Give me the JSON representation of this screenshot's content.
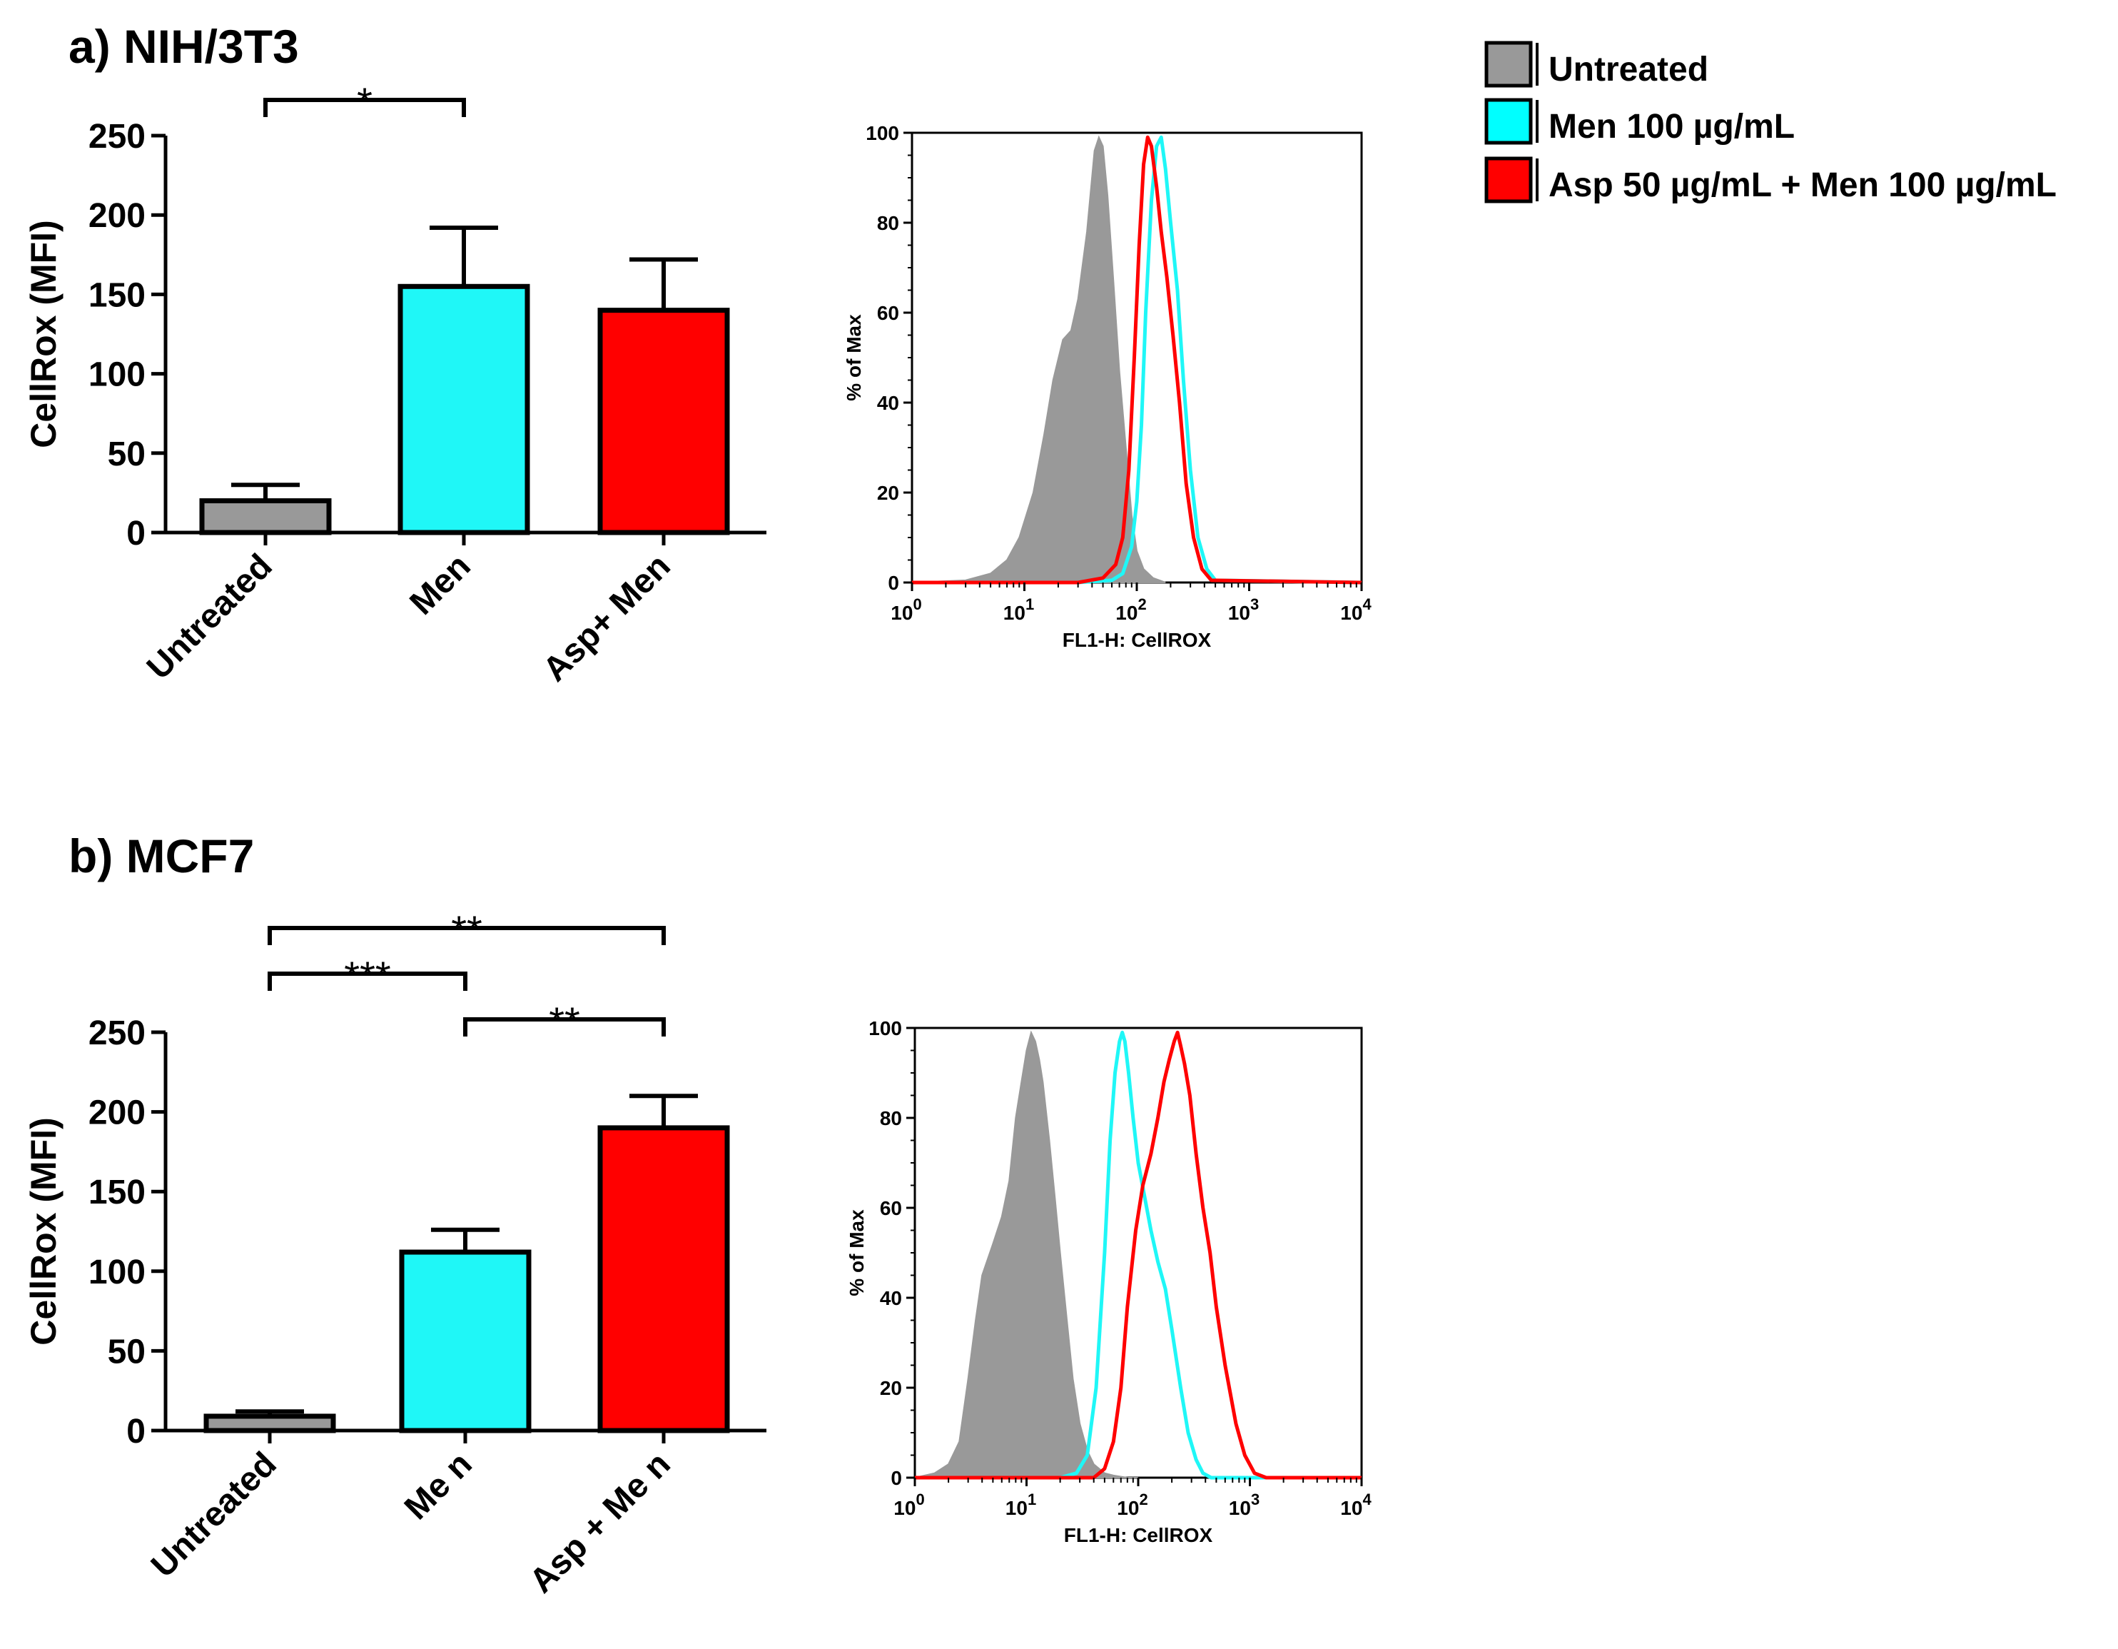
{
  "legend": {
    "entries": [
      {
        "label": "Untreated",
        "color": "#999999"
      },
      {
        "label": "Men 100 µg/mL",
        "color": "#00ffff"
      },
      {
        "label": "Asp 50 µg/mL + Men 100 µg/mL",
        "color": "#ff0000"
      }
    ]
  },
  "colors": {
    "untreated": "#999999",
    "men": "#1ff7f7",
    "asp_men": "#ff0000",
    "axis": "#000000"
  },
  "chart_data": [
    {
      "type": "bar",
      "panel_label": "a) NIH/3T3",
      "categories": [
        "Untreated",
        "Men",
        "Asp+ Men"
      ],
      "values": [
        20,
        155,
        140
      ],
      "errors": [
        10,
        37,
        32
      ],
      "ylabel": "CellRox (MFI)",
      "ylim": [
        0,
        250
      ],
      "yticks": [
        "0",
        "50",
        "100",
        "150",
        "200",
        "250"
      ],
      "significance": [
        {
          "from": 0,
          "to": 1,
          "label": "*"
        }
      ]
    },
    {
      "type": "area",
      "panel_label": "a) NIH/3T3 histogram",
      "xlabel": "FL1-H: CellROX",
      "ylabel": "% of Max",
      "xscale": "log",
      "xlim": [
        1,
        10000
      ],
      "ylim": [
        0,
        100
      ],
      "xticks": [
        {
          "base": "10",
          "exp": "0"
        },
        {
          "base": "10",
          "exp": "1"
        },
        {
          "base": "10",
          "exp": "2"
        },
        {
          "base": "10",
          "exp": "3"
        },
        {
          "base": "10",
          "exp": "4"
        }
      ],
      "yticks": [
        "0",
        "20",
        "40",
        "60",
        "80",
        "100"
      ],
      "series": [
        {
          "key": "untreated",
          "style": "filled",
          "x": [
            1,
            3,
            5,
            7,
            9,
            12,
            15,
            18,
            22,
            26,
            30,
            36,
            42,
            46,
            50,
            55,
            62,
            70,
            80,
            90,
            100,
            115,
            140,
            180
          ],
          "y": [
            0,
            0.5,
            2,
            5,
            10,
            20,
            33,
            45,
            54,
            56,
            63,
            78,
            96,
            99,
            97,
            86,
            67,
            47,
            30,
            15,
            7,
            3,
            1,
            0
          ]
        },
        {
          "key": "men",
          "style": "line",
          "x": [
            1,
            30,
            60,
            75,
            90,
            100,
            110,
            120,
            135,
            150,
            165,
            180,
            200,
            230,
            260,
            300,
            350,
            420,
            500,
            10000
          ],
          "y": [
            0,
            0,
            0.5,
            2,
            8,
            18,
            35,
            60,
            85,
            97,
            99,
            92,
            80,
            65,
            45,
            25,
            10,
            3,
            0.5,
            0
          ]
        },
        {
          "key": "asp_men",
          "style": "line",
          "x": [
            1,
            30,
            50,
            65,
            75,
            85,
            95,
            105,
            115,
            125,
            135,
            150,
            165,
            185,
            210,
            240,
            275,
            320,
            380,
            460,
            10000
          ],
          "y": [
            0,
            0,
            1,
            4,
            10,
            25,
            50,
            75,
            93,
            99,
            97,
            88,
            78,
            68,
            55,
            40,
            22,
            10,
            3,
            0.5,
            0
          ]
        }
      ]
    },
    {
      "type": "bar",
      "panel_label": "b) MCF7",
      "categories": [
        "Untreated",
        "Me n",
        "Asp + Me n"
      ],
      "values": [
        9,
        112,
        190
      ],
      "errors": [
        3,
        14,
        20
      ],
      "ylabel": "CellRox (MFI)",
      "ylim": [
        0,
        250
      ],
      "yticks": [
        "0",
        "50",
        "100",
        "150",
        "200",
        "250"
      ],
      "significance": [
        {
          "from": 0,
          "to": 2,
          "label": "**",
          "level": 2
        },
        {
          "from": 0,
          "to": 1,
          "label": "***",
          "level": 1
        },
        {
          "from": 1,
          "to": 2,
          "label": "**",
          "level": 0
        }
      ]
    },
    {
      "type": "area",
      "panel_label": "b) MCF7 histogram",
      "xlabel": "FL1-H: CellROX",
      "ylabel": "% of Max",
      "xscale": "log",
      "xlim": [
        1,
        10000
      ],
      "ylim": [
        0,
        100
      ],
      "xticks": [
        {
          "base": "10",
          "exp": "0"
        },
        {
          "base": "10",
          "exp": "1"
        },
        {
          "base": "10",
          "exp": "2"
        },
        {
          "base": "10",
          "exp": "3"
        },
        {
          "base": "10",
          "exp": "4"
        }
      ],
      "yticks": [
        "0",
        "20",
        "40",
        "60",
        "80",
        "100"
      ],
      "series": [
        {
          "key": "untreated",
          "style": "filled",
          "x": [
            1,
            1.5,
            2,
            2.5,
            3,
            3.5,
            4,
            5,
            6,
            7,
            8,
            9,
            10,
            11,
            12,
            13,
            14,
            16,
            18,
            20,
            23,
            26,
            30,
            35,
            40,
            50,
            60,
            80,
            100
          ],
          "y": [
            0,
            1,
            3,
            8,
            22,
            35,
            45,
            52,
            58,
            66,
            80,
            88,
            95,
            99,
            97,
            93,
            88,
            75,
            62,
            50,
            35,
            22,
            12,
            6,
            3,
            1,
            0.5,
            0,
            0
          ]
        },
        {
          "key": "men",
          "style": "line",
          "x": [
            1,
            20,
            28,
            35,
            42,
            50,
            56,
            62,
            68,
            72,
            76,
            82,
            90,
            100,
            115,
            130,
            150,
            175,
            200,
            240,
            280,
            330,
            380,
            450,
            10000
          ],
          "y": [
            0,
            0,
            1,
            5,
            20,
            50,
            75,
            90,
            97,
            99,
            97,
            90,
            80,
            70,
            62,
            55,
            48,
            42,
            33,
            20,
            10,
            4,
            1,
            0,
            0
          ]
        },
        {
          "key": "asp_men",
          "style": "line",
          "x": [
            1,
            40,
            50,
            60,
            70,
            80,
            95,
            110,
            130,
            150,
            170,
            190,
            210,
            225,
            240,
            260,
            290,
            330,
            380,
            440,
            500,
            600,
            750,
            900,
            1100,
            1400,
            10000
          ],
          "y": [
            0,
            0,
            2,
            8,
            20,
            38,
            55,
            65,
            72,
            80,
            88,
            93,
            97,
            99,
            96,
            92,
            85,
            72,
            60,
            50,
            38,
            25,
            12,
            5,
            1,
            0,
            0
          ]
        }
      ]
    }
  ]
}
